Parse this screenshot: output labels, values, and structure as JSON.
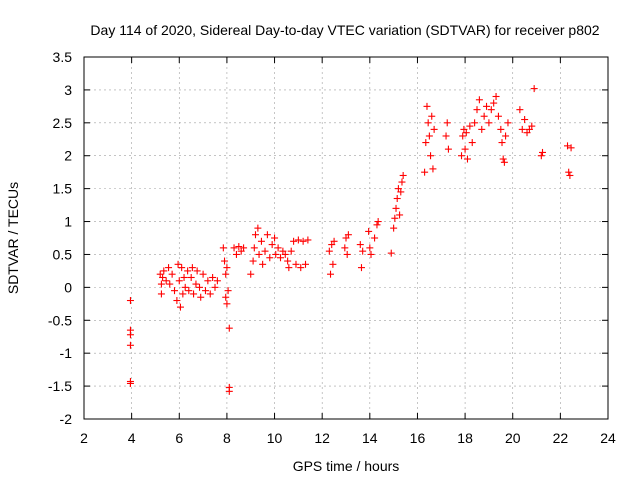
{
  "colors": {
    "series": "#ff0000",
    "grid": "#a0a0a0",
    "axis": "#000000",
    "background": "#ffffff"
  },
  "chart_data": {
    "type": "scatter",
    "title": "Day 114 of 2020, Sidereal Day-to-day VTEC variation (SDTVAR) for receiver p802",
    "xlabel": "GPS time / hours",
    "ylabel": "SDTVAR / TECUs",
    "xlim": [
      2,
      24
    ],
    "ylim": [
      -2,
      3.5
    ],
    "xticks": [
      2,
      4,
      6,
      8,
      10,
      12,
      14,
      16,
      18,
      20,
      22,
      24
    ],
    "yticks": [
      -2,
      -1.5,
      -1,
      -0.5,
      0,
      0.5,
      1,
      1.5,
      2,
      2.5,
      3,
      3.5
    ],
    "grid": true,
    "marker": "+",
    "series": [
      {
        "name": "SDTVAR",
        "points": [
          [
            3.95,
            -0.2
          ],
          [
            3.95,
            -0.65
          ],
          [
            3.95,
            -0.72
          ],
          [
            3.95,
            -0.88
          ],
          [
            3.95,
            -1.43
          ],
          [
            3.95,
            -1.46
          ],
          [
            5.2,
            0.2
          ],
          [
            5.25,
            0.05
          ],
          [
            5.25,
            -0.1
          ],
          [
            5.3,
            0.15
          ],
          [
            5.35,
            0.25
          ],
          [
            5.45,
            0.1
          ],
          [
            5.55,
            0.3
          ],
          [
            5.6,
            0.05
          ],
          [
            5.7,
            0.2
          ],
          [
            5.8,
            -0.05
          ],
          [
            5.9,
            -0.2
          ],
          [
            5.95,
            0.35
          ],
          [
            6.0,
            0.1
          ],
          [
            6.05,
            -0.3
          ],
          [
            6.1,
            0.3
          ],
          [
            6.15,
            -0.1
          ],
          [
            6.2,
            0.15
          ],
          [
            6.25,
            0.0
          ],
          [
            6.35,
            0.25
          ],
          [
            6.4,
            -0.05
          ],
          [
            6.5,
            0.15
          ],
          [
            6.55,
            0.3
          ],
          [
            6.6,
            -0.1
          ],
          [
            6.7,
            0.05
          ],
          [
            6.75,
            0.25
          ],
          [
            6.85,
            0.0
          ],
          [
            6.9,
            -0.15
          ],
          [
            7.0,
            0.2
          ],
          [
            7.1,
            -0.05
          ],
          [
            7.2,
            0.1
          ],
          [
            7.3,
            -0.1
          ],
          [
            7.4,
            0.15
          ],
          [
            7.5,
            0.0
          ],
          [
            7.6,
            0.1
          ],
          [
            7.85,
            0.6
          ],
          [
            7.9,
            0.4
          ],
          [
            7.95,
            0.2
          ],
          [
            7.95,
            -0.15
          ],
          [
            8.0,
            -0.25
          ],
          [
            8.0,
            0.3
          ],
          [
            8.05,
            -0.05
          ],
          [
            8.1,
            -0.62
          ],
          [
            8.1,
            -1.52
          ],
          [
            8.1,
            -1.58
          ],
          [
            8.3,
            0.6
          ],
          [
            8.4,
            0.5
          ],
          [
            8.5,
            0.62
          ],
          [
            8.6,
            0.55
          ],
          [
            8.7,
            0.6
          ],
          [
            9.0,
            0.2
          ],
          [
            9.1,
            0.4
          ],
          [
            9.15,
            0.6
          ],
          [
            9.2,
            0.8
          ],
          [
            9.3,
            0.9
          ],
          [
            9.35,
            0.5
          ],
          [
            9.45,
            0.7
          ],
          [
            9.5,
            0.35
          ],
          [
            9.6,
            0.55
          ],
          [
            9.7,
            0.8
          ],
          [
            9.8,
            0.45
          ],
          [
            9.9,
            0.65
          ],
          [
            10.0,
            0.75
          ],
          [
            10.05,
            0.5
          ],
          [
            10.15,
            0.6
          ],
          [
            10.25,
            0.45
          ],
          [
            10.35,
            0.55
          ],
          [
            10.45,
            0.5
          ],
          [
            10.55,
            0.4
          ],
          [
            10.6,
            0.3
          ],
          [
            10.7,
            0.55
          ],
          [
            10.8,
            0.7
          ],
          [
            10.9,
            0.35
          ],
          [
            11.0,
            0.72
          ],
          [
            11.1,
            0.3
          ],
          [
            11.2,
            0.7
          ],
          [
            11.3,
            0.35
          ],
          [
            11.4,
            0.72
          ],
          [
            12.3,
            0.55
          ],
          [
            12.35,
            0.2
          ],
          [
            12.4,
            0.65
          ],
          [
            12.45,
            0.35
          ],
          [
            12.5,
            0.7
          ],
          [
            12.95,
            0.6
          ],
          [
            13.0,
            0.75
          ],
          [
            13.05,
            0.5
          ],
          [
            13.1,
            0.8
          ],
          [
            13.6,
            0.65
          ],
          [
            13.65,
            0.3
          ],
          [
            13.7,
            0.55
          ],
          [
            13.95,
            0.85
          ],
          [
            14.0,
            0.6
          ],
          [
            14.05,
            0.5
          ],
          [
            14.2,
            0.75
          ],
          [
            14.3,
            0.95
          ],
          [
            14.35,
            1.0
          ],
          [
            14.9,
            0.52
          ],
          [
            15.0,
            0.9
          ],
          [
            15.05,
            1.05
          ],
          [
            15.1,
            1.2
          ],
          [
            15.15,
            1.35
          ],
          [
            15.2,
            1.5
          ],
          [
            15.25,
            1.1
          ],
          [
            15.3,
            1.45
          ],
          [
            15.35,
            1.6
          ],
          [
            15.4,
            1.7
          ],
          [
            16.3,
            1.75
          ],
          [
            16.35,
            2.2
          ],
          [
            16.4,
            2.75
          ],
          [
            16.45,
            2.5
          ],
          [
            16.5,
            2.3
          ],
          [
            16.55,
            2.0
          ],
          [
            16.6,
            2.6
          ],
          [
            16.65,
            1.8
          ],
          [
            16.7,
            2.4
          ],
          [
            17.2,
            2.3
          ],
          [
            17.25,
            2.5
          ],
          [
            17.3,
            2.1
          ],
          [
            17.85,
            2.0
          ],
          [
            17.9,
            2.3
          ],
          [
            17.95,
            2.4
          ],
          [
            18.0,
            2.1
          ],
          [
            18.05,
            2.35
          ],
          [
            18.1,
            1.95
          ],
          [
            18.2,
            2.45
          ],
          [
            18.3,
            2.2
          ],
          [
            18.4,
            2.5
          ],
          [
            18.5,
            2.7
          ],
          [
            18.6,
            2.85
          ],
          [
            18.7,
            2.4
          ],
          [
            18.8,
            2.6
          ],
          [
            18.9,
            2.75
          ],
          [
            19.0,
            2.5
          ],
          [
            19.1,
            2.7
          ],
          [
            19.2,
            2.8
          ],
          [
            19.3,
            2.9
          ],
          [
            19.4,
            2.6
          ],
          [
            19.5,
            2.4
          ],
          [
            19.55,
            2.2
          ],
          [
            19.6,
            1.95
          ],
          [
            19.65,
            1.9
          ],
          [
            19.7,
            2.3
          ],
          [
            19.8,
            2.5
          ],
          [
            20.3,
            2.7
          ],
          [
            20.4,
            2.4
          ],
          [
            20.5,
            2.55
          ],
          [
            20.6,
            2.35
          ],
          [
            20.7,
            2.4
          ],
          [
            20.8,
            2.45
          ],
          [
            20.9,
            3.02
          ],
          [
            21.2,
            2.0
          ],
          [
            21.25,
            2.05
          ],
          [
            22.3,
            2.15
          ],
          [
            22.35,
            1.75
          ],
          [
            22.4,
            1.7
          ],
          [
            22.45,
            2.12
          ]
        ]
      }
    ]
  }
}
